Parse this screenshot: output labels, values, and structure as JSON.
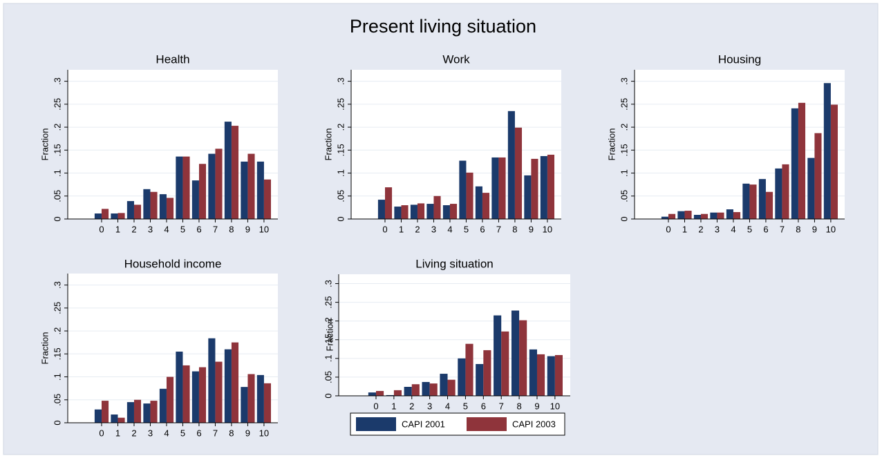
{
  "title": "Present living situation",
  "chart_data": [
    {
      "type": "bar",
      "title": "Health",
      "ylabel": "Fraction",
      "categories": [
        "0",
        "1",
        "2",
        "3",
        "4",
        "5",
        "6",
        "7",
        "8",
        "9",
        "10"
      ],
      "series": [
        {
          "name": "CAPI 2001",
          "color": "#1b3a6b",
          "values": [
            0.012,
            0.012,
            0.039,
            0.065,
            0.054,
            0.136,
            0.084,
            0.142,
            0.212,
            0.125,
            0.125
          ]
        },
        {
          "name": "CAPI 2003",
          "color": "#8f343b",
          "values": [
            0.022,
            0.013,
            0.031,
            0.059,
            0.046,
            0.136,
            0.12,
            0.153,
            0.203,
            0.142,
            0.086
          ]
        }
      ],
      "ylim": [
        0,
        0.325
      ],
      "yticks": [
        0,
        {
          "value": 0.05,
          "label": ".05"
        },
        {
          "value": 0.1,
          "label": ".1"
        },
        {
          "value": 0.15,
          "label": ".15"
        },
        {
          "value": 0.2,
          "label": ".2"
        },
        {
          "value": 0.25,
          "label": ".25"
        },
        {
          "value": 0.3,
          "label": ".3"
        }
      ],
      "grid": true
    },
    {
      "type": "bar",
      "title": "Work",
      "ylabel": "Fraction",
      "categories": [
        "0",
        "1",
        "2",
        "3",
        "4",
        "5",
        "6",
        "7",
        "8",
        "9",
        "10"
      ],
      "series": [
        {
          "name": "CAPI 2001",
          "color": "#1b3a6b",
          "values": [
            0.042,
            0.027,
            0.031,
            0.033,
            0.03,
            0.127,
            0.071,
            0.134,
            0.235,
            0.095,
            0.137
          ]
        },
        {
          "name": "CAPI 2003",
          "color": "#8f343b",
          "values": [
            0.069,
            0.03,
            0.034,
            0.05,
            0.033,
            0.101,
            0.057,
            0.134,
            0.199,
            0.131,
            0.14
          ]
        }
      ],
      "ylim": [
        0,
        0.325
      ],
      "yticks": [
        0,
        {
          "value": 0.05,
          "label": ".05"
        },
        {
          "value": 0.1,
          "label": ".1"
        },
        {
          "value": 0.15,
          "label": ".15"
        },
        {
          "value": 0.2,
          "label": ".2"
        },
        {
          "value": 0.25,
          "label": ".25"
        },
        {
          "value": 0.3,
          "label": ".3"
        }
      ],
      "grid": true
    },
    {
      "type": "bar",
      "title": "Housing",
      "ylabel": "Fraction",
      "categories": [
        "0",
        "1",
        "2",
        "3",
        "4",
        "5",
        "6",
        "7",
        "8",
        "9",
        "10"
      ],
      "series": [
        {
          "name": "CAPI 2001",
          "color": "#1b3a6b",
          "values": [
            0.005,
            0.017,
            0.009,
            0.014,
            0.021,
            0.077,
            0.087,
            0.11,
            0.241,
            0.133,
            0.296
          ]
        },
        {
          "name": "CAPI 2003",
          "color": "#8f343b",
          "values": [
            0.011,
            0.018,
            0.011,
            0.014,
            0.015,
            0.075,
            0.059,
            0.119,
            0.253,
            0.187,
            0.249
          ]
        }
      ],
      "ylim": [
        0,
        0.325
      ],
      "yticks": [
        0,
        {
          "value": 0.05,
          "label": ".05"
        },
        {
          "value": 0.1,
          "label": ".1"
        },
        {
          "value": 0.15,
          "label": ".15"
        },
        {
          "value": 0.2,
          "label": ".2"
        },
        {
          "value": 0.25,
          "label": ".25"
        },
        {
          "value": 0.3,
          "label": ".3"
        }
      ],
      "grid": true
    },
    {
      "type": "bar",
      "title": "Household income",
      "ylabel": "Fraction",
      "categories": [
        "0",
        "1",
        "2",
        "3",
        "4",
        "5",
        "6",
        "7",
        "8",
        "9",
        "10"
      ],
      "series": [
        {
          "name": "CAPI 2001",
          "color": "#1b3a6b",
          "values": [
            0.029,
            0.018,
            0.045,
            0.042,
            0.074,
            0.155,
            0.112,
            0.184,
            0.16,
            0.078,
            0.104
          ]
        },
        {
          "name": "CAPI 2003",
          "color": "#8f343b",
          "values": [
            0.048,
            0.011,
            0.05,
            0.048,
            0.1,
            0.125,
            0.121,
            0.133,
            0.175,
            0.106,
            0.086
          ]
        }
      ],
      "ylim": [
        0,
        0.325
      ],
      "yticks": [
        0,
        {
          "value": 0.05,
          "label": ".05"
        },
        {
          "value": 0.1,
          "label": ".1"
        },
        {
          "value": 0.15,
          "label": ".15"
        },
        {
          "value": 0.2,
          "label": ".2"
        },
        {
          "value": 0.25,
          "label": ".25"
        },
        {
          "value": 0.3,
          "label": ".3"
        }
      ],
      "grid": true
    },
    {
      "type": "bar",
      "title": "Living situation",
      "ylabel": "Fraction",
      "categories": [
        "0",
        "1",
        "2",
        "3",
        "4",
        "5",
        "6",
        "7",
        "8",
        "9",
        "10"
      ],
      "series": [
        {
          "name": "CAPI 2001",
          "color": "#1b3a6b",
          "values": [
            0.009,
            0.002,
            0.024,
            0.037,
            0.059,
            0.1,
            0.085,
            0.215,
            0.228,
            0.124,
            0.106
          ]
        },
        {
          "name": "CAPI 2003",
          "color": "#8f343b",
          "values": [
            0.013,
            0.015,
            0.031,
            0.033,
            0.043,
            0.139,
            0.122,
            0.172,
            0.202,
            0.111,
            0.109
          ]
        }
      ],
      "ylim": [
        0,
        0.325
      ],
      "yticks": [
        0,
        {
          "value": 0.05,
          "label": ".05"
        },
        {
          "value": 0.1,
          "label": ".1"
        },
        {
          "value": 0.15,
          "label": ".15"
        },
        {
          "value": 0.2,
          "label": ".2"
        },
        {
          "value": 0.25,
          "label": ".25"
        },
        {
          "value": 0.3,
          "label": ".3"
        }
      ],
      "grid": true
    }
  ]
}
